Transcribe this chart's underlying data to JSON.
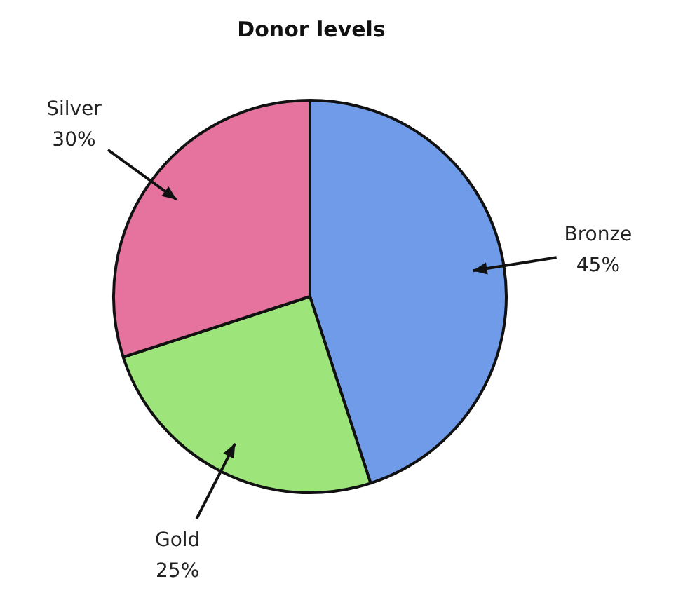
{
  "chart_data": {
    "type": "pie",
    "title": "Donor levels",
    "categories": [
      "Bronze",
      "Gold",
      "Silver"
    ],
    "values": [
      45,
      25,
      30
    ],
    "value_labels": [
      "45%",
      "25%",
      "30%"
    ],
    "colors": [
      "#6f9be8",
      "#9de57a",
      "#e5739d"
    ],
    "legend": false
  }
}
